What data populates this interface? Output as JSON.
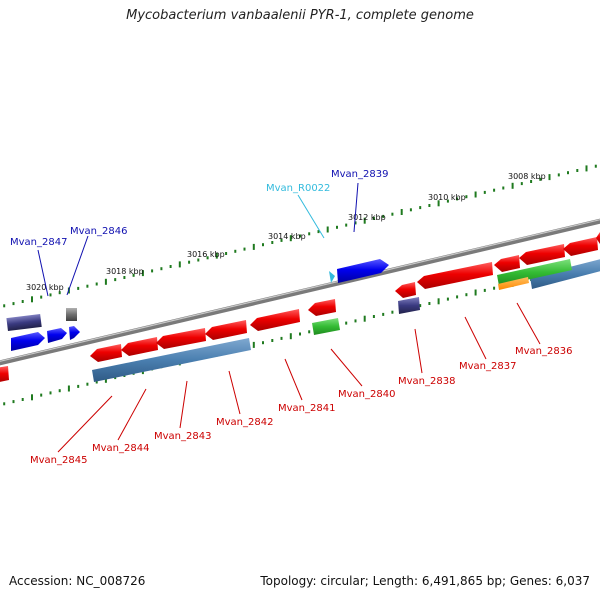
{
  "title": "Mycobacterium vanbaalenii PYR-1, complete genome",
  "footer": {
    "accession": "Accession: NC_008726",
    "summary": "Topology: circular; Length: 6,491,865 bp; Genes: 6,037"
  },
  "colors": {
    "backbone": "#808080",
    "tick": "#1f7a1f",
    "forward_label": "#1010b0",
    "reverse_label": "#cc0000",
    "rna_label": "#33bbdd",
    "red_gene": "#ee0000",
    "blue_gene": "#0000ee",
    "green_gene": "#33bb33",
    "steel_blue_feature": "#4a7fb0",
    "gray_gene": "#707070",
    "navy_gene": "#3a3a80",
    "orange_feature": "#ff9900"
  },
  "scale_labels": [
    "3008 kbp",
    "3010 kbp",
    "3012 kbp",
    "3014 kbp",
    "3016 kbp",
    "3018 kbp",
    "3020 kbp"
  ],
  "genes_forward": [
    {
      "name": "Mvan_2847",
      "icon": "blue-arrow"
    },
    {
      "name": "Mvan_2846",
      "icon": "gray-arrow"
    },
    {
      "name": "Mvan_2839",
      "icon": "blue-arrow"
    }
  ],
  "rna_features": [
    {
      "name": "Mvan_R0022",
      "icon": "cyan-triangle"
    }
  ],
  "genes_reverse": [
    {
      "name": "Mvan_2836"
    },
    {
      "name": "Mvan_2837"
    },
    {
      "name": "Mvan_2838"
    },
    {
      "name": "Mvan_2840"
    },
    {
      "name": "Mvan_2841"
    },
    {
      "name": "Mvan_2842"
    },
    {
      "name": "Mvan_2843"
    },
    {
      "name": "Mvan_2844"
    },
    {
      "name": "Mvan_2845"
    }
  ]
}
